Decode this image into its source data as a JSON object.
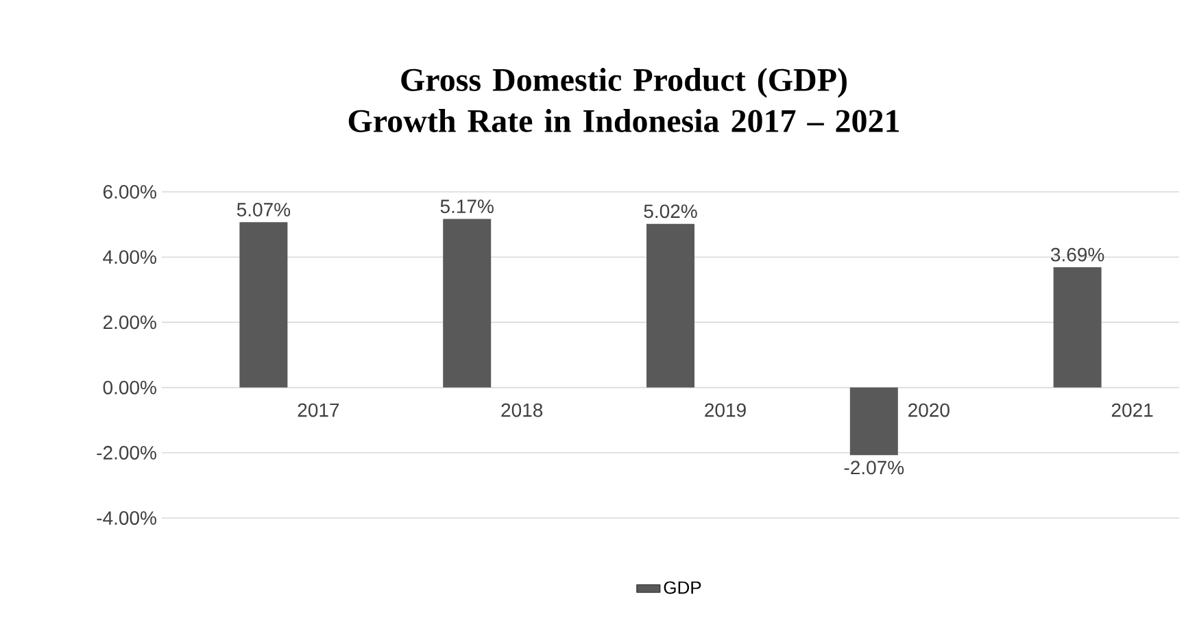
{
  "chart_data": {
    "type": "bar",
    "title": "Gross Domestic Product (GDP) Growth Rate in Indonesia 2017 – 2021",
    "categories": [
      "2017",
      "2018",
      "2019",
      "2020",
      "2021"
    ],
    "series": [
      {
        "name": "GDP",
        "color": "#595959",
        "values": [
          5.07,
          5.17,
          5.02,
          -2.07,
          3.69
        ],
        "value_labels": [
          "5.07%",
          "5.17%",
          "5.02%",
          "-2.07%",
          "3.69%"
        ]
      }
    ],
    "ylim": [
      -4,
      6
    ],
    "yticks": [
      {
        "value": -4,
        "label": "-4.00%"
      },
      {
        "value": -2,
        "label": "-2.00%"
      },
      {
        "value": 0,
        "label": "0.00%"
      },
      {
        "value": 2,
        "label": "2.00%"
      },
      {
        "value": 4,
        "label": "4.00%"
      },
      {
        "value": 6,
        "label": "6.00%"
      }
    ],
    "grid": "y",
    "legend": "bottom"
  }
}
